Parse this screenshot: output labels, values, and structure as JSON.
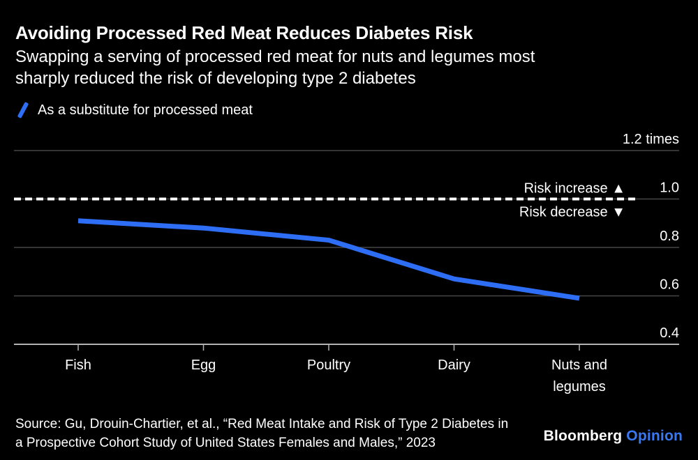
{
  "colors": {
    "background": "#000000",
    "text": "#ffffff",
    "gridline": "#464646",
    "axis": "#b3b3b3",
    "accent_blue": "#2e6ef5",
    "logo_opinion_blue": "#3a78f2"
  },
  "header": {
    "title": "Avoiding Processed Red Meat Reduces Diabetes Risk",
    "subtitle_lines": [
      "Swapping a serving of processed red meat for nuts and legumes most",
      "sharply reduced the risk of developing type 2 diabetes"
    ],
    "legend": {
      "marker": "blue-slash",
      "label": "As a substitute for processed meat"
    }
  },
  "chart_data": {
    "type": "line",
    "title": "Avoiding Processed Red Meat Reduces Diabetes Risk",
    "categories": [
      "Fish",
      "Egg",
      "Poultry",
      "Dairy",
      "Nuts and\nlegumes"
    ],
    "series": [
      {
        "name": "As a substitute for processed meat",
        "color": "#2e6ef5",
        "values": [
          0.91,
          0.88,
          0.83,
          0.67,
          0.59
        ]
      }
    ],
    "xlabel": "",
    "ylabel": "",
    "ylim": [
      0.4,
      1.2
    ],
    "yticks": [
      {
        "value": 1.2,
        "label": "1.2 times"
      },
      {
        "value": 1.0,
        "label": "1.0"
      },
      {
        "value": 0.8,
        "label": "0.8"
      },
      {
        "value": 0.6,
        "label": "0.6"
      },
      {
        "value": 0.4,
        "label": "0.4"
      }
    ],
    "reference_line": {
      "value": 1.0,
      "style": "dashed",
      "label_above": "Risk increase ▲",
      "label_below": "Risk decrease ▼"
    },
    "grid": "horizontal",
    "legend_position": "top-left"
  },
  "footer": {
    "source_lines": [
      "Source: Gu, Drouin-Chartier, et al., “Red Meat Intake and Risk of Type 2 Diabetes in",
      "a Prospective Cohort Study of United States Females and Males,” 2023"
    ],
    "logo": {
      "brand": "Bloomberg",
      "product": "Opinion"
    }
  }
}
